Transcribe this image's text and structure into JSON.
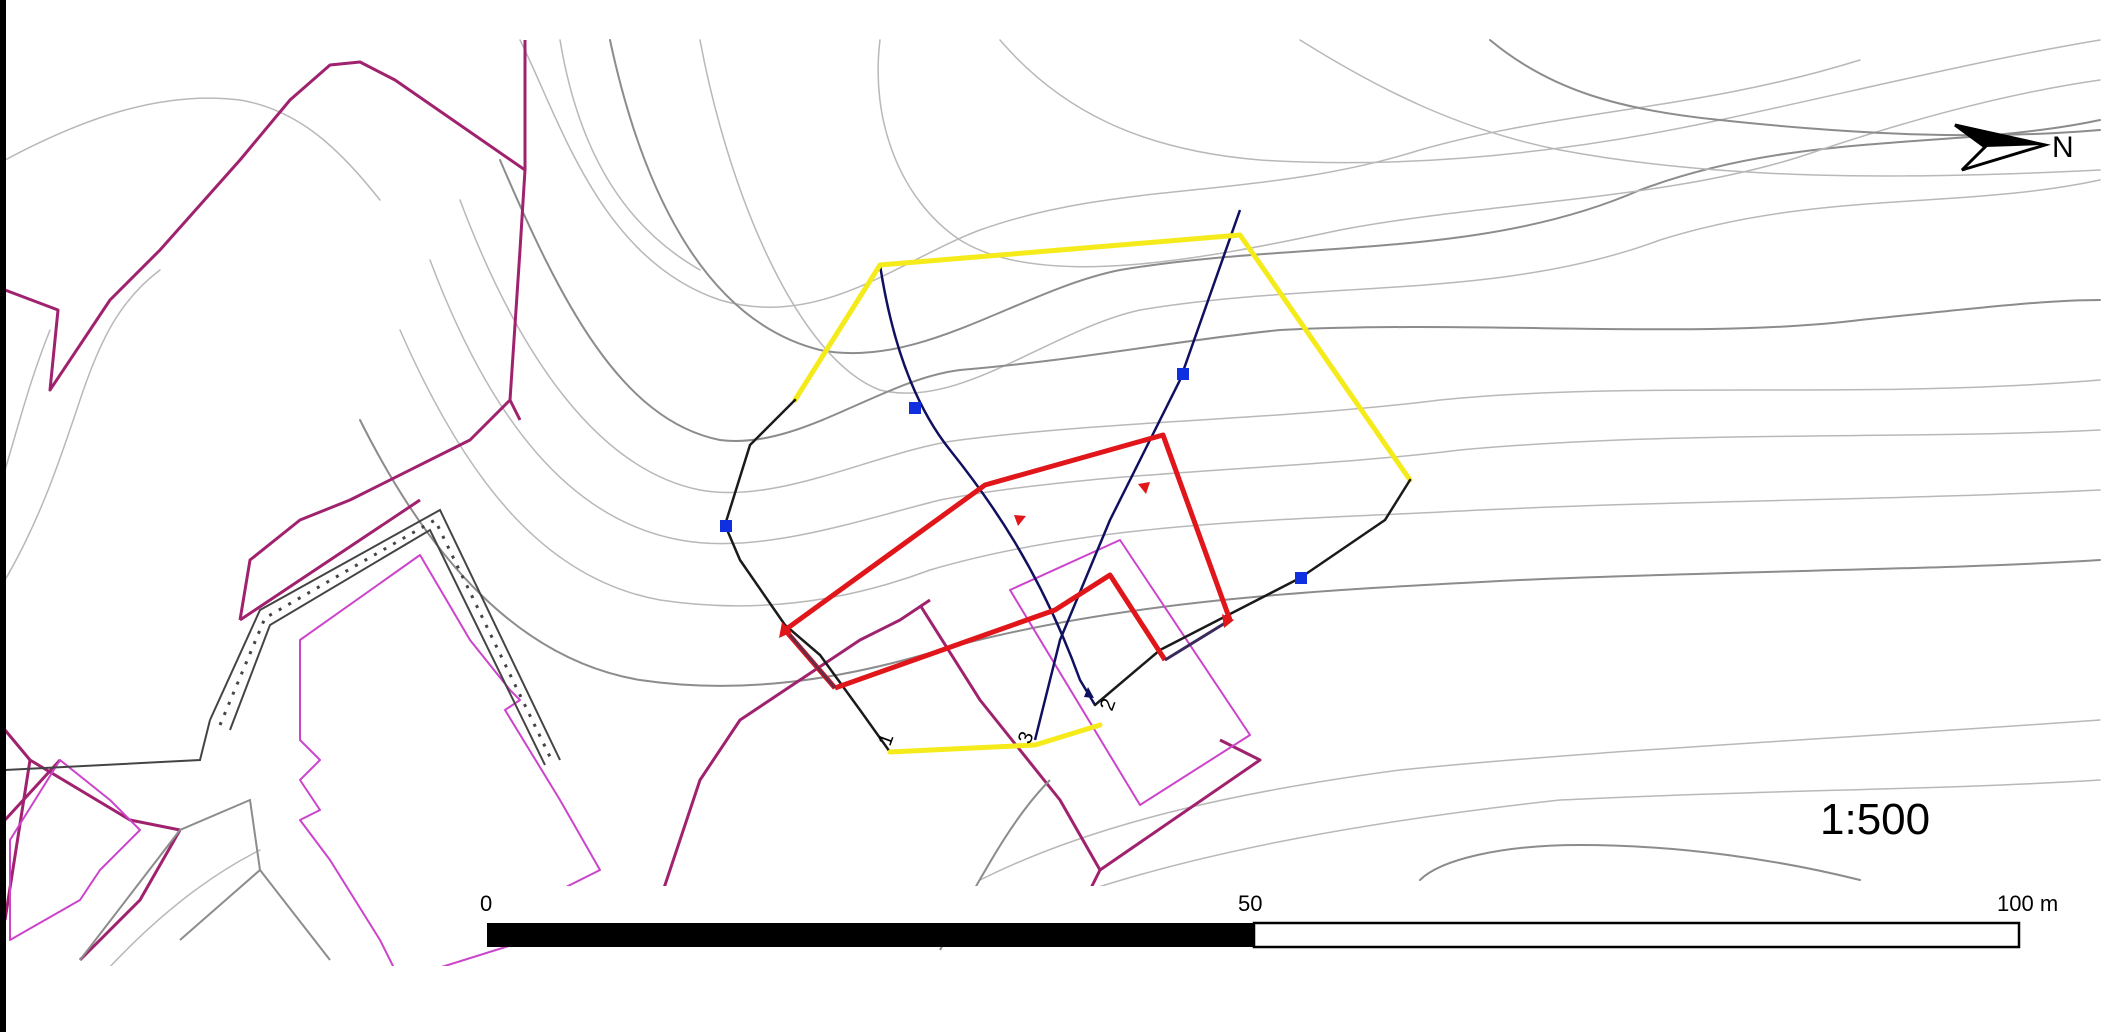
{
  "map": {
    "scale_ratio": "1:500",
    "north_arrow_label": "N",
    "scale_bar": {
      "unit": "m",
      "ticks": [
        "0",
        "50",
        "100 m"
      ],
      "max_value": 100,
      "midpoint_value": 50
    },
    "profile_labels": [
      "1",
      "2",
      "3"
    ],
    "colors": {
      "background": "#ffffff",
      "contour": "#8c8c8c",
      "contour_thin": "#b8b8b8",
      "parcel_boundary": "#a0226e",
      "building_outline": "#cc44cc",
      "outer_boundary_yellow": "#f5ea1a",
      "outer_boundary_black": "#1a1a1a",
      "inner_polygon_red": "#e0161b",
      "profile_line": "#101060",
      "marker_blue": "#1030e0",
      "frame": "#000000"
    },
    "icons": [
      "north-arrow-icon",
      "profile-marker-icon",
      "direction-triangle-icon"
    ]
  }
}
